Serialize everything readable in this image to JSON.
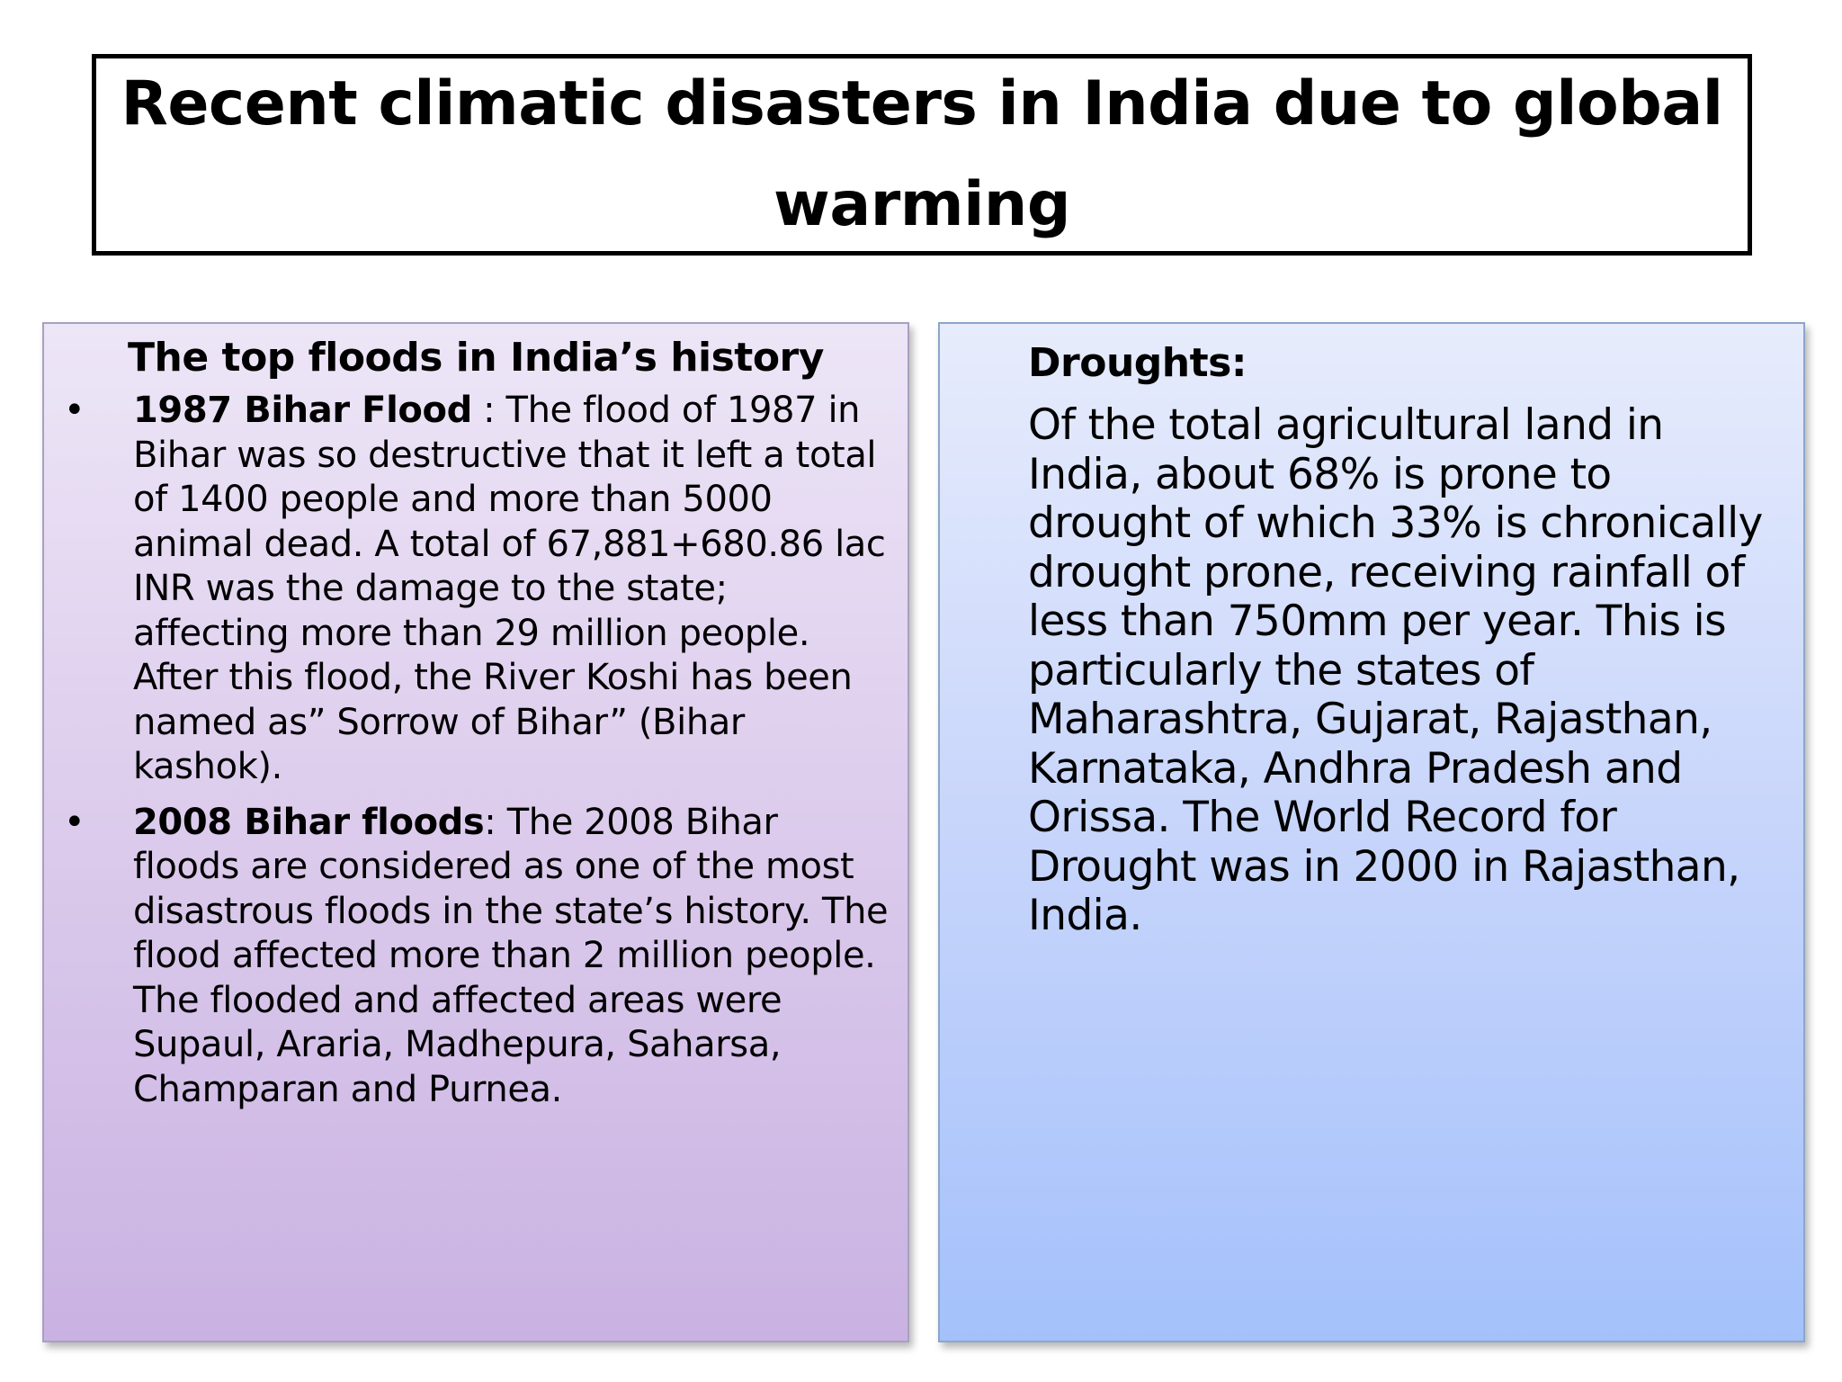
{
  "title": "Recent climatic disasters in India due to global warming",
  "floods": {
    "heading": "The top floods in India’s history",
    "items": [
      {
        "name": "1987 Bihar Flood",
        "separator": " : ",
        "text": "The flood of 1987 in Bihar was so destructive that it left a total of 1400 people and more than 5000 animal dead. A total of 67,881+680.86 lac INR was the damage to the state; affecting more than 29 million people. After this flood, the River Koshi has been named as” Sorrow of Bihar” (Bihar kashok)."
      },
      {
        "name": "2008 Bihar floods",
        "separator": ": ",
        "text": "The 2008 Bihar floods are considered as one of the most disastrous floods in the state’s history. The flood affected more than 2 million people. The flooded and affected areas were Supaul, Araria, Madhepura, Saharsa, Champaran and Purnea."
      }
    ]
  },
  "droughts": {
    "heading": "Droughts:",
    "body": "Of the total agricultural land in India, about 68% is prone to drought of which 33% is chronically drought prone, receiving rainfall of less than 750mm per year. This is particularly the states of Maharashtra, Gujarat, Rajasthan, Karnataka, Andhra Pradesh and Orissa. The World Record for Drought was in 2000 in Rajasthan, India."
  },
  "colors": {
    "left_panel_top": "#ede6f7",
    "left_panel_bottom": "#c9b2e2",
    "right_panel_top": "#e7ecfc",
    "right_panel_bottom": "#a4c1fb"
  }
}
